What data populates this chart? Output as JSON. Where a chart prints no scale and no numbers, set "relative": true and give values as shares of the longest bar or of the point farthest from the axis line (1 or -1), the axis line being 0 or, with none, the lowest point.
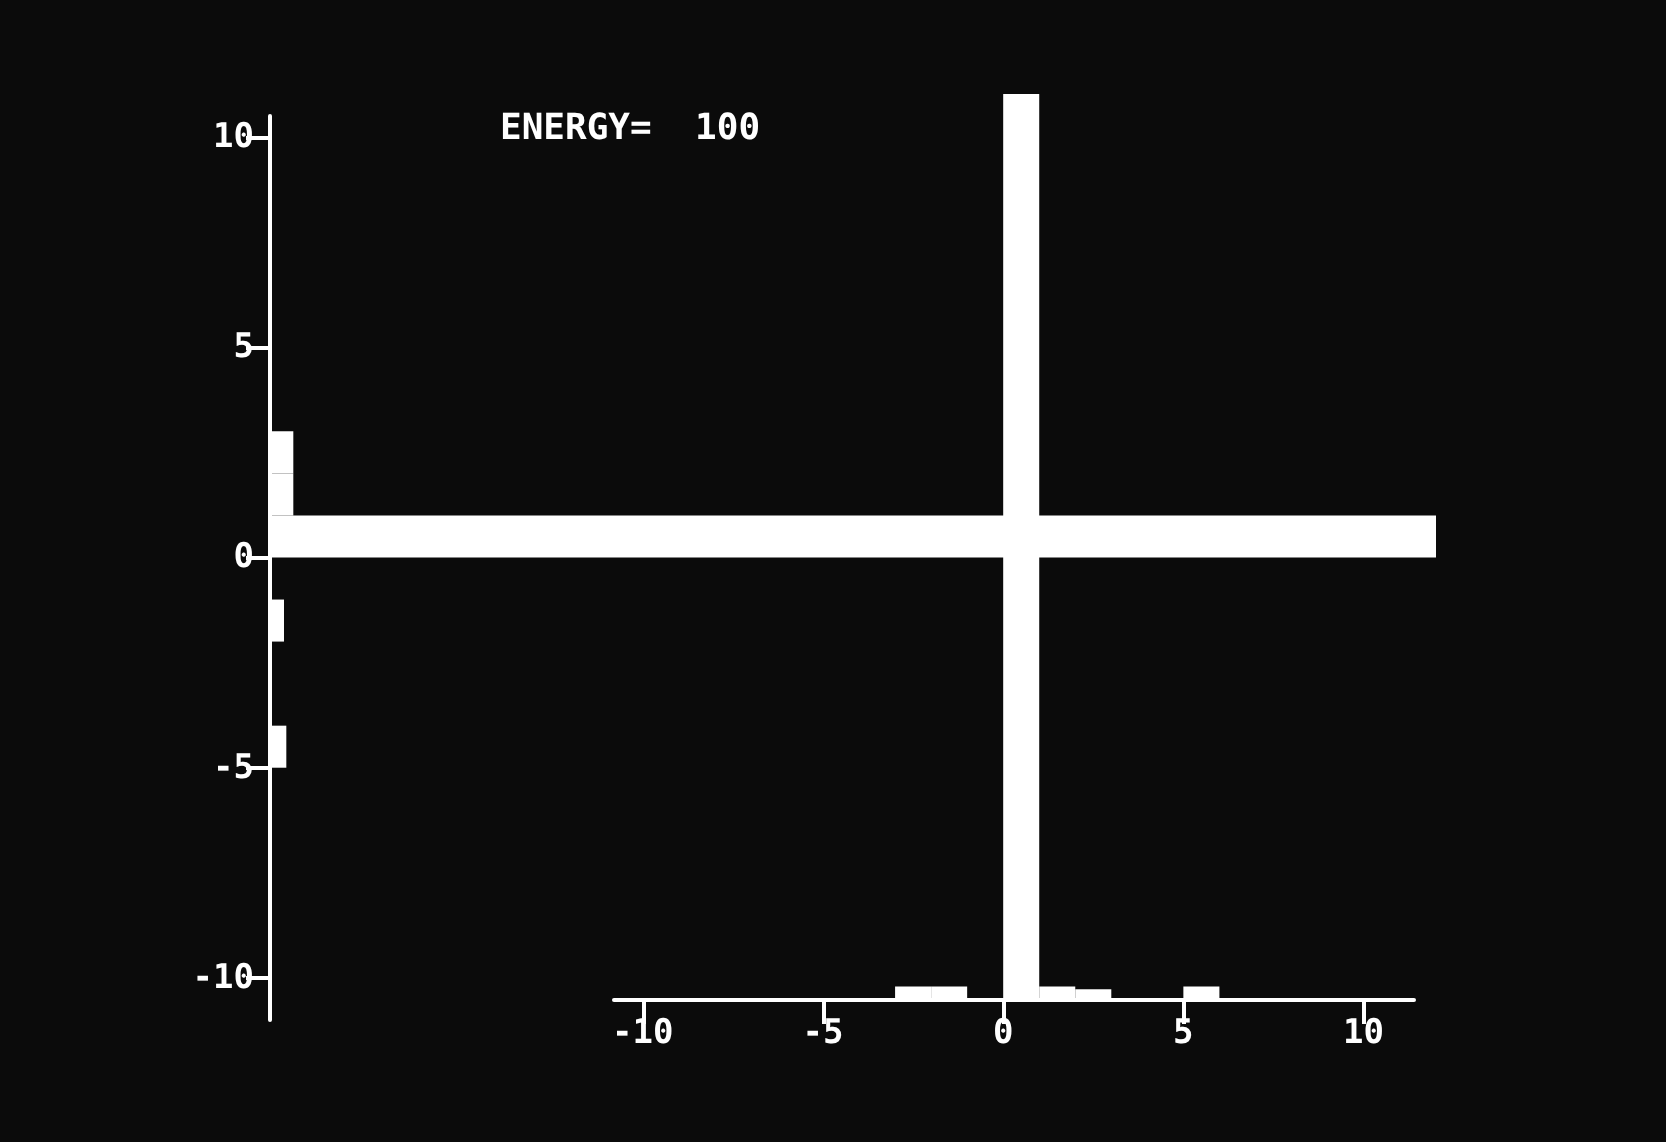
{
  "chart_data": [
    {
      "type": "bar",
      "title": "ENERGY=  100",
      "relative": true,
      "color": "#ffffff",
      "x": [
        -9.5,
        -8.5,
        -7.5,
        -6.5,
        -5.5,
        -4.5,
        -3.5,
        -2.5,
        -1.5,
        -0.5,
        0.5,
        1.5,
        2.5,
        3.5,
        4.5,
        5.5,
        6.5,
        7.5,
        8.5,
        9.5,
        10.5
      ],
      "values": [
        0,
        0,
        0,
        0,
        0,
        0,
        0,
        0.015,
        0.015,
        0,
        1,
        0.015,
        0.012,
        0,
        0,
        0.015,
        0,
        0,
        0,
        0,
        0
      ],
      "xlim": [
        -10.8,
        11.4
      ],
      "xticks": [
        -10,
        -5,
        0,
        5,
        10
      ]
    },
    {
      "type": "bar",
      "orientation": "horizontal",
      "relative": true,
      "color": "#ffffff",
      "x": [
        -9.5,
        -8.5,
        -7.5,
        -6.5,
        -5.5,
        -4.5,
        -3.5,
        -2.5,
        -1.5,
        -0.5,
        0.5,
        1.5,
        2.5,
        3.5,
        4.5,
        5.5,
        6.5,
        7.5,
        8.5,
        9.5
      ],
      "values": [
        0,
        0,
        0,
        0,
        0,
        0.014,
        0,
        0,
        0.012,
        0,
        1,
        0.02,
        0.02,
        0,
        0,
        0,
        0,
        0,
        0,
        0
      ],
      "ylim": [
        -11,
        10.5
      ],
      "yticks": [
        -10,
        -5,
        0,
        5,
        10
      ]
    }
  ]
}
